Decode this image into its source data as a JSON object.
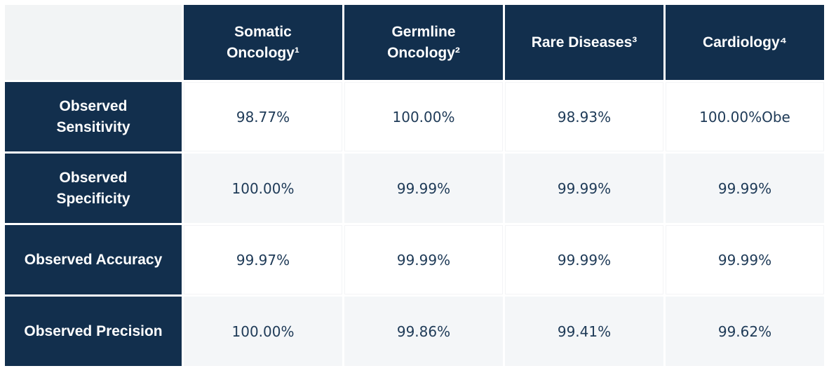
{
  "chart_data": {
    "type": "table",
    "title": "",
    "corner_label": "",
    "columns": [
      "Somatic\nOncology¹",
      "Germline\nOncology²",
      "Rare Diseases³",
      "Cardiology⁴"
    ],
    "rows": [
      {
        "label": "Observed\nSensitivity",
        "values": [
          "98.77%",
          "100.00%",
          "98.93%",
          "100.00%Obe"
        ]
      },
      {
        "label": "Observed\nSpecificity",
        "values": [
          "100.00%",
          "99.99%",
          "99.99%",
          "99.99%"
        ]
      },
      {
        "label": "Observed Accuracy",
        "values": [
          "99.97%",
          "99.99%",
          "99.99%",
          "99.99%"
        ]
      },
      {
        "label": "Observed Precision",
        "values": [
          "100.00%",
          "99.86%",
          "99.41%",
          "99.62%"
        ]
      }
    ]
  },
  "colors": {
    "header_bg": "#122F4D",
    "header_text": "#FFFFFF",
    "corner_bg": "#F2F4F5",
    "white_cell_bg": "#FFFFFF",
    "alt_cell_bg": "#F4F6F8",
    "value_text": "#1E3A57",
    "page_bg": "#FFFFFF"
  }
}
